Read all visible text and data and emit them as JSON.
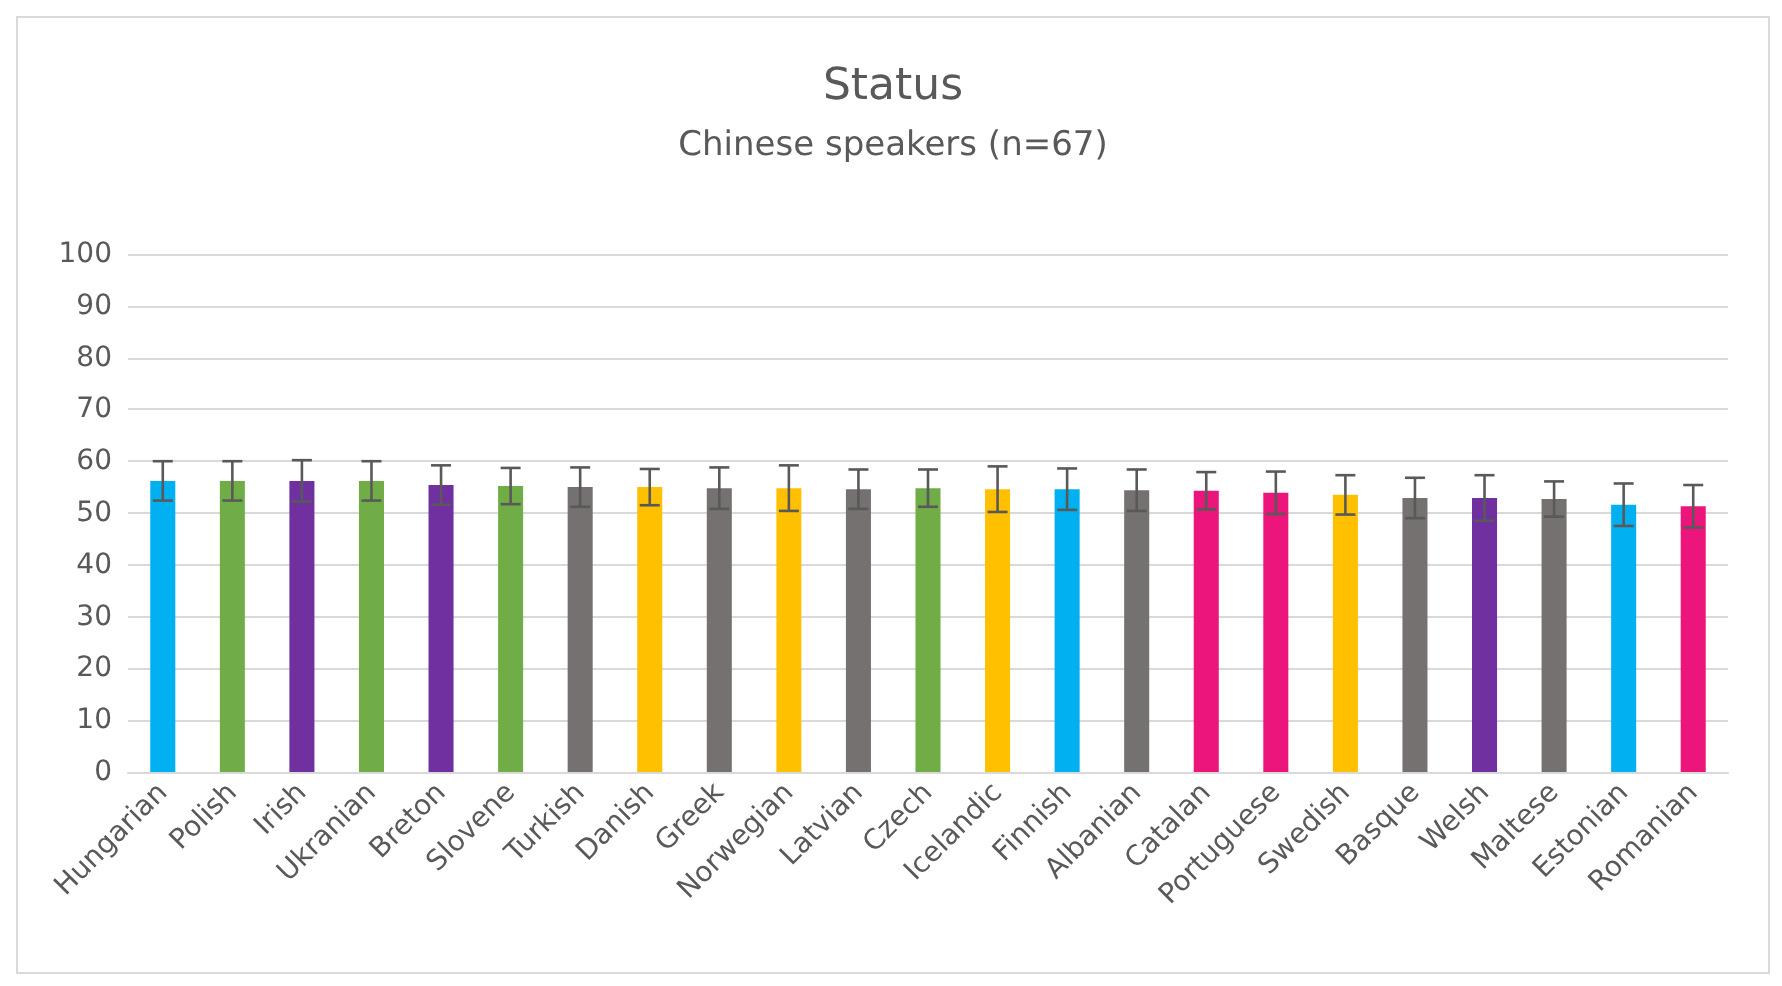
{
  "chart_data": {
    "type": "bar",
    "title": "Status",
    "subtitle": "Chinese speakers (n=67)",
    "categories": [
      "Hungarian",
      "Polish",
      "Irish",
      "Ukranian",
      "Breton",
      "Slovene",
      "Turkish",
      "Danish",
      "Greek",
      "Norwegian",
      "Latvian",
      "Czech",
      "Icelandic",
      "Finnish",
      "Albanian",
      "Catalan",
      "Portuguese",
      "Swedish",
      "Basque",
      "Welsh",
      "Maltese",
      "Estonian",
      "Romanian"
    ],
    "values": [
      56.2,
      56.2,
      56.2,
      56.2,
      55.4,
      55.2,
      55,
      55,
      54.8,
      54.8,
      54.6,
      54.8,
      54.6,
      54.6,
      54.4,
      54.3,
      53.9,
      53.5,
      52.9,
      52.9,
      52.7,
      51.6,
      51.3
    ],
    "errors": [
      3.8,
      3.8,
      4,
      3.8,
      3.8,
      3.5,
      3.8,
      3.5,
      4,
      4.4,
      3.8,
      3.6,
      4.4,
      4,
      4,
      3.6,
      4.1,
      3.8,
      3.9,
      4.4,
      3.4,
      4.1,
      4.1
    ],
    "colors": [
      "#00b0f0",
      "#70ad47",
      "#7030a0",
      "#70ad47",
      "#7030a0",
      "#70ad47",
      "#767171",
      "#ffc000",
      "#767171",
      "#ffc000",
      "#767171",
      "#70ad47",
      "#ffc000",
      "#00b0f0",
      "#767171",
      "#ec157b",
      "#ec157b",
      "#ffc000",
      "#767171",
      "#7030a0",
      "#767171",
      "#00b0f0",
      "#ec157b"
    ],
    "ylim": [
      0,
      100
    ],
    "yticks": [
      0,
      10,
      20,
      30,
      40,
      50,
      60,
      70,
      80,
      90,
      100
    ],
    "grid": "y"
  }
}
